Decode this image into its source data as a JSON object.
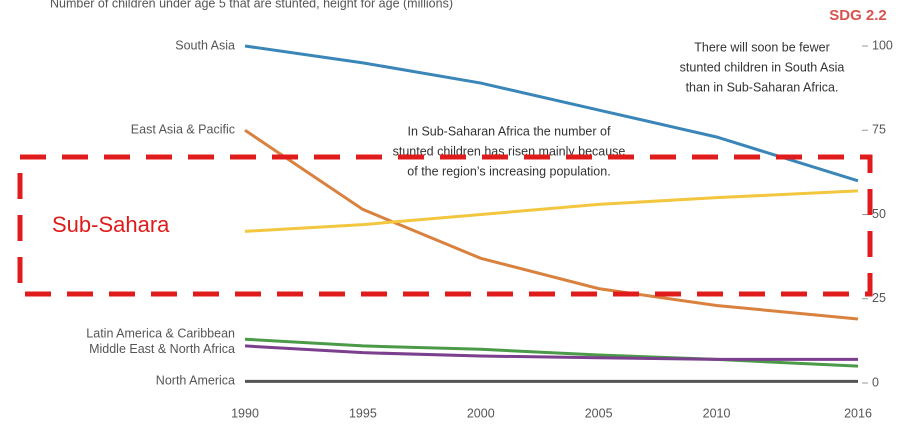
{
  "chart_data": {
    "type": "line",
    "subtitle": "Number of children under age 5 that are stunted, height for age (millions)",
    "badge": "SDG 2.2",
    "x": [
      1990,
      1995,
      2000,
      2005,
      2010,
      2016
    ],
    "xlim": [
      1990,
      2016
    ],
    "xticks": [
      1990,
      1995,
      2000,
      2005,
      2010,
      2016
    ],
    "ylim": [
      0,
      100
    ],
    "yticks": [
      0,
      25,
      50,
      75,
      100
    ],
    "series": [
      {
        "name": "South Asia",
        "color": "#3a86b8",
        "values": [
          100,
          95,
          89,
          81,
          73,
          60
        ]
      },
      {
        "name": "East Asia & Pacific",
        "color": "#d9813e",
        "values": [
          75,
          51.5,
          37,
          28,
          23,
          19
        ]
      },
      {
        "color": "#f3c63f",
        "values": [
          45,
          47,
          50,
          53,
          55,
          57
        ]
      },
      {
        "name": "Latin America & Caribbean",
        "color": "#4a9a48",
        "values": [
          13,
          11,
          10,
          8.3,
          7,
          5
        ]
      },
      {
        "name": "Middle East & North Africa",
        "color": "#7b3f8e",
        "values": [
          11,
          9,
          8,
          7.5,
          7,
          7
        ]
      },
      {
        "name": "North America",
        "color": "#555555",
        "values": [
          0.5,
          0.5,
          0.5,
          0.5,
          0.5,
          0.5
        ]
      }
    ],
    "annotations": [
      [
        "There will soon be fewer",
        "stunted children in South Asia",
        "than in Sub-Saharan Africa."
      ],
      [
        "In Sub-Saharan Africa the number of",
        "stunted children has risen mainly because",
        "of the region’s increasing population."
      ]
    ],
    "highlight_label": "Sub-Sahara"
  }
}
